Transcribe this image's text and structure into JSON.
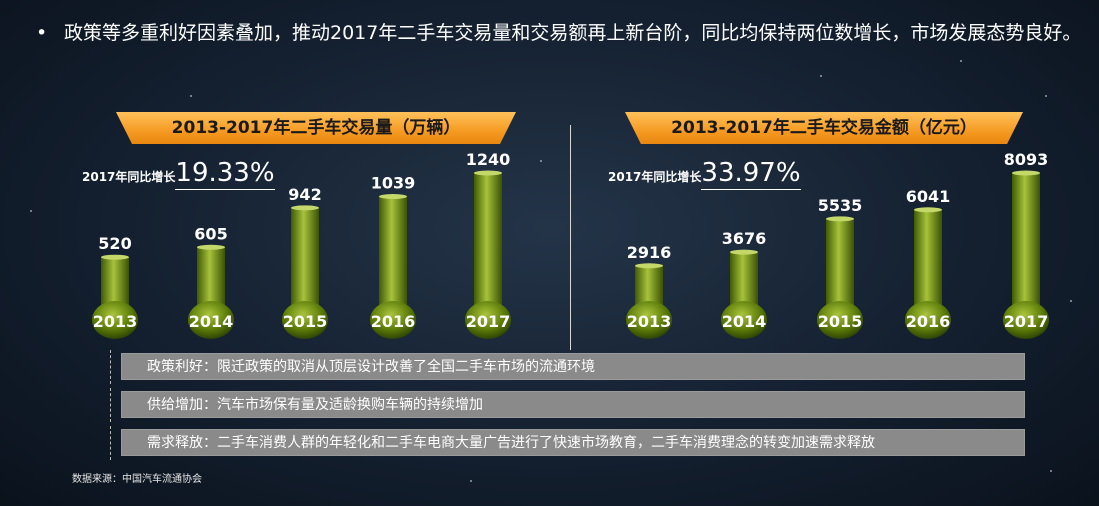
{
  "headline": {
    "bullet": "•",
    "text": "政策等多重利好因素叠加，推动2017年二手车交易量和交易额再上新台阶，同比均保持两位数增长，市场发展态势良好。"
  },
  "colors": {
    "title_bg": "#f59a22",
    "bar": "#6a8a0c",
    "factor_bg": "#8a8a8a"
  },
  "chart_data": [
    {
      "type": "bar",
      "title": "2013-2017年二手车交易量（万辆）",
      "growth_label": "2017年同比增长",
      "growth_value": "19.33%",
      "categories": [
        "2013",
        "2014",
        "2015",
        "2016",
        "2017"
      ],
      "values": [
        520,
        605,
        942,
        1039,
        1240
      ],
      "value_labels": [
        "520",
        "605",
        "942",
        "1039",
        "1240"
      ]
    },
    {
      "type": "bar",
      "title": "2013-2017年二手车交易金额（亿元）",
      "growth_label": "2017年同比增长",
      "growth_value": "33.97%",
      "categories": [
        "2013",
        "2014",
        "2015",
        "2016",
        "2017"
      ],
      "values": [
        2916,
        3676,
        5535,
        6041,
        8093
      ],
      "value_labels": [
        "2916",
        "3676",
        "5535",
        "6041",
        "8093"
      ]
    }
  ],
  "factors": [
    "政策利好：限迁政策的取消从顶层设计改善了全国二手车市场的流通环境",
    "供给增加：汽车市场保有量及适龄换购车辆的持续增加",
    "需求释放：二手车消费人群的年轻化和二手车电商大量广告进行了快速市场教育，二手车消费理念的转变加速需求释放"
  ],
  "source": "数据来源：中国汽车流通协会"
}
